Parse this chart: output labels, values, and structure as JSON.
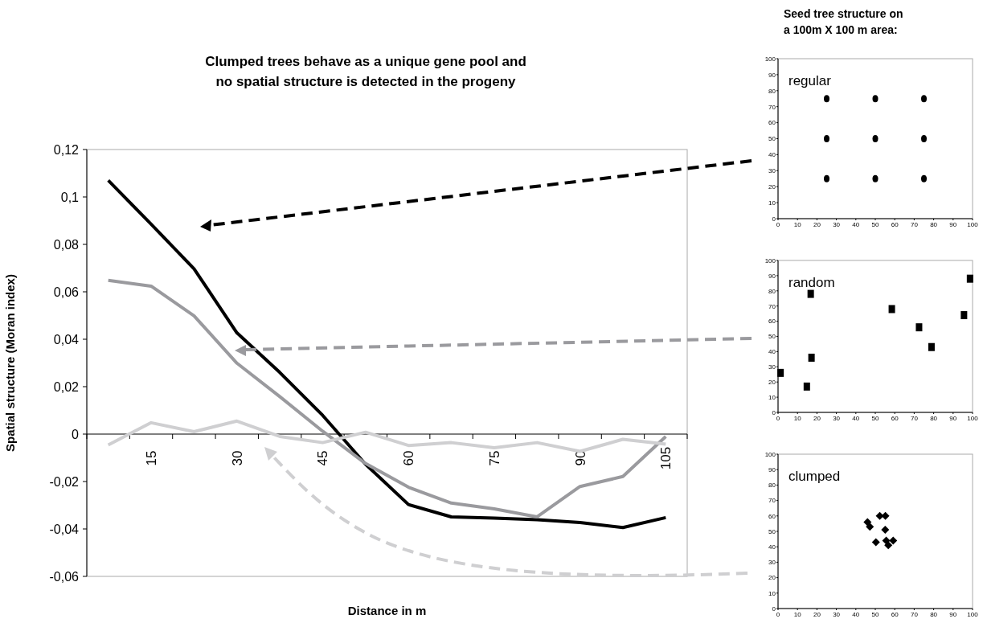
{
  "chart_data": [
    {
      "type": "line",
      "title": "Clumped trees behave as a unique gene pool and\nno spatial structure is detected in the progeny",
      "xlabel": "Distance in m",
      "ylabel": "Spatial structure (Moran index)",
      "categories": [
        null,
        "15",
        null,
        "30",
        null,
        "45",
        null,
        "60",
        null,
        "75",
        null,
        "90",
        null,
        "105"
      ],
      "series": [
        {
          "color": "#000000",
          "values": [
            0.107,
            0.0885,
            0.0697,
            0.0427,
            0.026,
            0.0079,
            -0.0127,
            -0.0297,
            -0.0349,
            -0.0354,
            -0.0361,
            -0.0373,
            -0.0394,
            -0.0352
          ]
        },
        {
          "color": "#9a9a9e",
          "values": [
            0.0648,
            0.0624,
            0.0499,
            0.0299,
            0.0158,
            0.0012,
            -0.0124,
            -0.0224,
            -0.0291,
            -0.0315,
            -0.0349,
            -0.0221,
            -0.0179,
            -0.001
          ]
        },
        {
          "color": "#cfcfd1",
          "values": [
            -0.0046,
            0.0048,
            0.001,
            0.0055,
            -0.001,
            -0.0036,
            0.0008,
            -0.0048,
            -0.0036,
            -0.0058,
            -0.0036,
            -0.0073,
            -0.0022,
            -0.0042
          ]
        }
      ],
      "ylim": [
        -0.06,
        0.12
      ],
      "yticks": [
        {
          "value": -0.06,
          "label": "-0,06"
        },
        {
          "value": -0.04,
          "label": "-0,04"
        },
        {
          "value": -0.02,
          "label": "-0,02"
        },
        0,
        {
          "value": 0.02,
          "label": "0,02"
        },
        {
          "value": 0.04,
          "label": "0,04"
        },
        {
          "value": 0.06,
          "label": "0,06"
        },
        {
          "value": 0.08,
          "label": "0,08"
        },
        {
          "value": 0.1,
          "label": "0,1"
        },
        {
          "value": 0.12,
          "label": "0,12"
        }
      ],
      "grid": false,
      "line_style": "solid",
      "marker": "none"
    },
    {
      "type": "scatter",
      "title": "Seed tree structure on\na 100m X 100 m area:",
      "annotations": [
        "regular"
      ],
      "series": [
        {
          "color": "#000000",
          "x": [
            25,
            50,
            75,
            25,
            50,
            75,
            25,
            50,
            75
          ],
          "values": [
            75,
            75,
            75,
            50,
            50,
            50,
            25,
            25,
            25
          ]
        }
      ],
      "xlim": [
        0,
        100
      ],
      "xticks": [
        0,
        10,
        20,
        30,
        40,
        50,
        60,
        70,
        80,
        90,
        100
      ],
      "ylim": [
        0,
        100
      ],
      "yticks": [
        0,
        10,
        20,
        30,
        40,
        50,
        60,
        70,
        80,
        90,
        100
      ],
      "marker": "circle",
      "grid": false
    },
    {
      "type": "scatter",
      "annotations": [
        "random"
      ],
      "series": [
        {
          "color": "#000000",
          "x": [
            1.3,
            16.8,
            17.2,
            14.8,
            58.5,
            72.5,
            78.9,
            95.6,
            98.7
          ],
          "values": [
            26,
            78,
            36,
            17,
            68,
            56,
            43,
            64,
            88
          ]
        }
      ],
      "xlim": [
        0,
        100
      ],
      "xticks": [
        0,
        10,
        20,
        30,
        40,
        50,
        60,
        70,
        80,
        90,
        100
      ],
      "ylim": [
        0,
        100
      ],
      "yticks": [
        0,
        10,
        20,
        30,
        40,
        50,
        60,
        70,
        80,
        90,
        100
      ],
      "marker": "square",
      "grid": false
    },
    {
      "type": "scatter",
      "annotations": [
        "clumped"
      ],
      "series": [
        {
          "color": "#000000",
          "x": [
            46,
            47.2,
            52.3,
            55.2,
            55.1,
            50.3,
            55.6,
            56.7,
            59.2
          ],
          "values": [
            56,
            53,
            60,
            60,
            51,
            43,
            44,
            41,
            44
          ]
        }
      ],
      "xlim": [
        0,
        100
      ],
      "xticks": [
        0,
        10,
        20,
        30,
        40,
        50,
        60,
        70,
        80,
        90,
        100
      ],
      "ylim": [
        0,
        100
      ],
      "yticks": [
        0,
        10,
        20,
        30,
        40,
        50,
        60,
        70,
        80,
        90,
        100
      ],
      "marker": "diamond",
      "grid": false
    }
  ]
}
